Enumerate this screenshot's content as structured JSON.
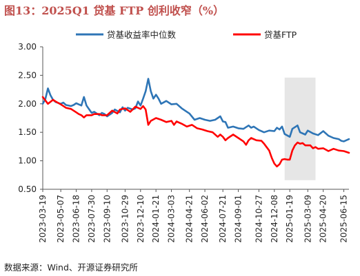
{
  "title": "图13：2025Q1 贷基 FTP 创利收窄（%）",
  "source": "数据来源：Wind、开源证券研究所",
  "chart_data": {
    "type": "line",
    "ylim": [
      0.5,
      3.0
    ],
    "yticks": [
      "3.00",
      "2.50",
      "2.00",
      "1.50",
      "1.00",
      "0.50"
    ],
    "xlim": [
      "2023-03-19",
      "2025-06-29"
    ],
    "xticks": [
      "2023-03-19",
      "2023-05-07",
      "2023-06-18",
      "2023-07-30",
      "2023-09-10",
      "2023-10-29",
      "2023-12-10",
      "2024-01-21",
      "2024-03-03",
      "2024-04-21",
      "2024-06-02",
      "2024-07-21",
      "2024-09-01",
      "2024-10-27",
      "2024-12-08",
      "2025-01-19",
      "2025-03-09",
      "2025-04-20",
      "2025-06-15"
    ],
    "grid": false,
    "legend": "top",
    "shaded_range": [
      "2025-01-05",
      "2025-03-30"
    ],
    "series": [
      {
        "name": "贷基收益率中位数",
        "color": "#2e75b6",
        "points": [
          [
            "2023-03-19",
            2.0
          ],
          [
            "2023-03-26",
            2.08
          ],
          [
            "2023-04-02",
            2.27
          ],
          [
            "2023-04-09",
            2.15
          ],
          [
            "2023-04-16",
            2.07
          ],
          [
            "2023-04-23",
            2.03
          ],
          [
            "2023-05-07",
            2.0
          ],
          [
            "2023-05-14",
            2.02
          ],
          [
            "2023-05-21",
            1.98
          ],
          [
            "2023-06-04",
            1.96
          ],
          [
            "2023-06-11",
            1.98
          ],
          [
            "2023-06-18",
            2.01
          ],
          [
            "2023-07-02",
            1.97
          ],
          [
            "2023-07-09",
            2.12
          ],
          [
            "2023-07-16",
            1.97
          ],
          [
            "2023-07-30",
            1.84
          ],
          [
            "2023-08-06",
            1.86
          ],
          [
            "2023-08-20",
            1.8
          ],
          [
            "2023-08-27",
            1.84
          ],
          [
            "2023-09-03",
            1.82
          ],
          [
            "2023-09-10",
            1.78
          ],
          [
            "2023-09-24",
            1.84
          ],
          [
            "2023-10-01",
            1.9
          ],
          [
            "2023-10-15",
            1.85
          ],
          [
            "2023-10-22",
            1.94
          ],
          [
            "2023-10-29",
            1.88
          ],
          [
            "2023-11-05",
            1.93
          ],
          [
            "2023-11-19",
            1.9
          ],
          [
            "2023-11-26",
            1.92
          ],
          [
            "2023-12-03",
            2.04
          ],
          [
            "2023-12-10",
            1.97
          ],
          [
            "2023-12-17",
            2.09
          ],
          [
            "2023-12-24",
            2.22
          ],
          [
            "2023-12-31",
            2.44
          ],
          [
            "2024-01-07",
            2.22
          ],
          [
            "2024-01-14",
            2.09
          ],
          [
            "2024-01-21",
            2.16
          ],
          [
            "2024-01-28",
            2.09
          ],
          [
            "2024-02-04",
            2.0
          ],
          [
            "2024-02-18",
            2.05
          ],
          [
            "2024-03-03",
            1.99
          ],
          [
            "2024-03-17",
            2.0
          ],
          [
            "2024-03-31",
            1.92
          ],
          [
            "2024-04-14",
            1.86
          ],
          [
            "2024-04-21",
            1.83
          ],
          [
            "2024-05-05",
            1.72
          ],
          [
            "2024-05-19",
            1.75
          ],
          [
            "2024-06-02",
            1.72
          ],
          [
            "2024-06-16",
            1.7
          ],
          [
            "2024-06-30",
            1.72
          ],
          [
            "2024-07-14",
            1.78
          ],
          [
            "2024-07-21",
            1.69
          ],
          [
            "2024-07-28",
            1.68
          ],
          [
            "2024-08-04",
            1.58
          ],
          [
            "2024-08-18",
            1.6
          ],
          [
            "2024-09-01",
            1.57
          ],
          [
            "2024-09-15",
            1.56
          ],
          [
            "2024-09-29",
            1.62
          ],
          [
            "2024-10-06",
            1.58
          ],
          [
            "2024-10-13",
            1.6
          ],
          [
            "2024-10-27",
            1.54
          ],
          [
            "2024-11-10",
            1.5
          ],
          [
            "2024-11-24",
            1.53
          ],
          [
            "2024-12-08",
            1.52
          ],
          [
            "2024-12-15",
            1.58
          ],
          [
            "2024-12-22",
            1.55
          ],
          [
            "2024-12-29",
            1.6
          ],
          [
            "2025-01-05",
            1.47
          ],
          [
            "2025-01-19",
            1.42
          ],
          [
            "2025-01-26",
            1.56
          ],
          [
            "2025-02-09",
            1.62
          ],
          [
            "2025-02-16",
            1.5
          ],
          [
            "2025-03-02",
            1.46
          ],
          [
            "2025-03-09",
            1.53
          ],
          [
            "2025-03-23",
            1.48
          ],
          [
            "2025-04-06",
            1.45
          ],
          [
            "2025-04-20",
            1.52
          ],
          [
            "2025-05-04",
            1.44
          ],
          [
            "2025-05-18",
            1.4
          ],
          [
            "2025-06-01",
            1.38
          ],
          [
            "2025-06-08",
            1.35
          ],
          [
            "2025-06-15",
            1.34
          ],
          [
            "2025-06-29",
            1.38
          ]
        ]
      },
      {
        "name": "贷基FTP",
        "color": "#ff0000",
        "points": [
          [
            "2023-03-19",
            2.12
          ],
          [
            "2023-03-26",
            2.06
          ],
          [
            "2023-04-02",
            2.0
          ],
          [
            "2023-04-16",
            2.07
          ],
          [
            "2023-04-23",
            2.04
          ],
          [
            "2023-05-07",
            1.99
          ],
          [
            "2023-05-21",
            1.93
          ],
          [
            "2023-06-04",
            1.91
          ],
          [
            "2023-06-18",
            1.85
          ],
          [
            "2023-06-25",
            1.82
          ],
          [
            "2023-07-02",
            1.8
          ],
          [
            "2023-07-09",
            1.76
          ],
          [
            "2023-07-16",
            1.8
          ],
          [
            "2023-07-30",
            1.8
          ],
          [
            "2023-08-06",
            1.82
          ],
          [
            "2023-08-20",
            1.82
          ],
          [
            "2023-08-27",
            1.8
          ],
          [
            "2023-09-10",
            1.8
          ],
          [
            "2023-09-24",
            1.88
          ],
          [
            "2023-10-08",
            1.83
          ],
          [
            "2023-10-15",
            1.9
          ],
          [
            "2023-10-29",
            1.92
          ],
          [
            "2023-11-12",
            1.86
          ],
          [
            "2023-11-26",
            1.95
          ],
          [
            "2023-12-10",
            1.91
          ],
          [
            "2023-12-17",
            1.96
          ],
          [
            "2023-12-24",
            1.9
          ],
          [
            "2023-12-31",
            1.63
          ],
          [
            "2024-01-07",
            1.7
          ],
          [
            "2024-01-21",
            1.75
          ],
          [
            "2024-02-04",
            1.72
          ],
          [
            "2024-02-18",
            1.68
          ],
          [
            "2024-03-03",
            1.7
          ],
          [
            "2024-03-10",
            1.63
          ],
          [
            "2024-03-17",
            1.69
          ],
          [
            "2024-03-31",
            1.65
          ],
          [
            "2024-04-14",
            1.6
          ],
          [
            "2024-04-28",
            1.63
          ],
          [
            "2024-05-12",
            1.57
          ],
          [
            "2024-05-26",
            1.55
          ],
          [
            "2024-06-09",
            1.52
          ],
          [
            "2024-06-23",
            1.5
          ],
          [
            "2024-07-07",
            1.42
          ],
          [
            "2024-07-14",
            1.46
          ],
          [
            "2024-07-21",
            1.42
          ],
          [
            "2024-07-28",
            1.36
          ],
          [
            "2024-08-04",
            1.4
          ],
          [
            "2024-08-18",
            1.46
          ],
          [
            "2024-09-01",
            1.4
          ],
          [
            "2024-09-15",
            1.34
          ],
          [
            "2024-09-22",
            1.28
          ],
          [
            "2024-09-29",
            1.36
          ],
          [
            "2024-10-06",
            1.4
          ],
          [
            "2024-10-20",
            1.36
          ],
          [
            "2024-11-03",
            1.35
          ],
          [
            "2024-11-10",
            1.3
          ],
          [
            "2024-11-24",
            1.18
          ],
          [
            "2024-12-01",
            1.05
          ],
          [
            "2024-12-08",
            0.95
          ],
          [
            "2024-12-15",
            0.9
          ],
          [
            "2024-12-22",
            0.94
          ],
          [
            "2024-12-29",
            1.02
          ],
          [
            "2025-01-05",
            1.03
          ],
          [
            "2025-01-12",
            1.02
          ],
          [
            "2025-01-19",
            1.02
          ],
          [
            "2025-01-26",
            1.18
          ],
          [
            "2025-02-02",
            1.27
          ],
          [
            "2025-02-09",
            1.32
          ],
          [
            "2025-02-16",
            1.3
          ],
          [
            "2025-02-23",
            1.31
          ],
          [
            "2025-03-02",
            1.27
          ],
          [
            "2025-03-16",
            1.27
          ],
          [
            "2025-03-23",
            1.22
          ],
          [
            "2025-03-30",
            1.24
          ],
          [
            "2025-04-06",
            1.21
          ],
          [
            "2025-04-20",
            1.22
          ],
          [
            "2025-05-04",
            1.17
          ],
          [
            "2025-05-18",
            1.21
          ],
          [
            "2025-06-01",
            1.18
          ],
          [
            "2025-06-15",
            1.17
          ],
          [
            "2025-06-29",
            1.14
          ]
        ]
      }
    ]
  }
}
